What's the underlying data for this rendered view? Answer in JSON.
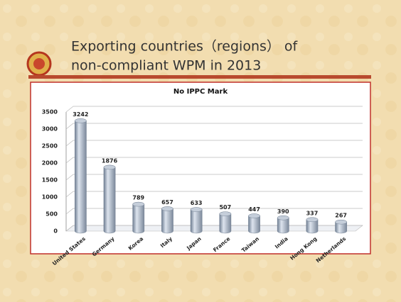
{
  "slide_title": [
    "Exporting countries（regions） of",
    "non-compliant WPM in 2013"
  ],
  "chart_data": {
    "type": "bar",
    "title": "No IPPC Mark",
    "categories": [
      "United States",
      "Germany",
      "Korea",
      "Italy",
      "Japan",
      "France",
      "Taiwan",
      "India",
      "Hong Kong",
      "Netherlands"
    ],
    "values": [
      3242,
      1876,
      789,
      657,
      633,
      507,
      447,
      390,
      337,
      267
    ],
    "color": "#9aa8ba",
    "ylim": [
      0,
      3500
    ],
    "yticks": [
      0,
      500,
      1000,
      1500,
      2000,
      2500,
      3000,
      3500
    ],
    "grid": true
  }
}
